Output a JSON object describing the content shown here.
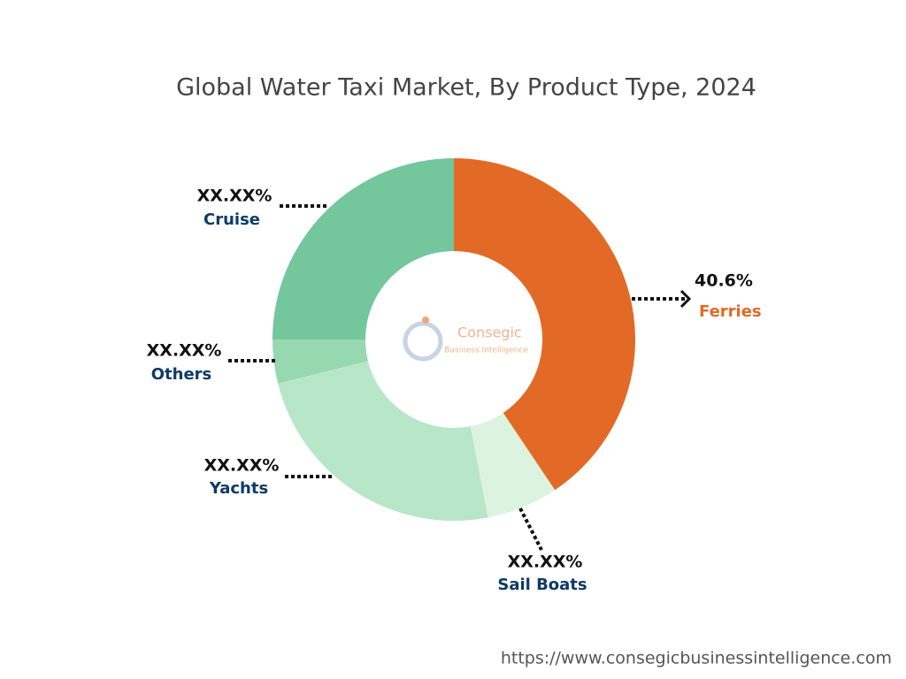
{
  "chart_data": {
    "type": "donut",
    "title": "Global Water Taxi Market, By Product Type, 2024",
    "categories": [
      "Ferries",
      "Sail Boats",
      "Yachts",
      "Others",
      "Cruise"
    ],
    "values": [
      40.6,
      6.4,
      24.1,
      3.9,
      25
    ],
    "percent_texts": [
      "40.6%",
      "XX.XX%",
      "XX.XX%",
      "XX.XX%",
      "XX.XX%"
    ],
    "colors": [
      "#e36a26",
      "#dcf3df",
      "#b7e6c9",
      "#96d8b0",
      "#74c69d"
    ],
    "logo": {
      "name": "Consegic",
      "tagline": "Business Intelligence"
    },
    "source": "https://www.consegicbusinessintelligence.com"
  }
}
